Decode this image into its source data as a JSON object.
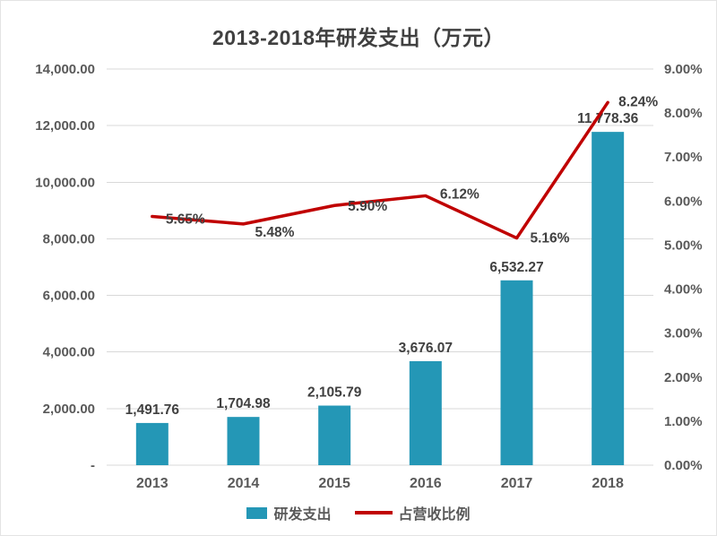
{
  "chart_data": {
    "type": "bar",
    "title": "2013-2018年研发支出（万元）",
    "categories": [
      "2013",
      "2014",
      "2015",
      "2016",
      "2017",
      "2018"
    ],
    "series": [
      {
        "name": "研发支出",
        "type": "bar",
        "axis": "left",
        "color": "#2497B6",
        "values": [
          1491.76,
          1704.98,
          2105.79,
          3676.07,
          6532.27,
          11778.36
        ],
        "labels": [
          "1,491.76",
          "1,704.98",
          "2,105.79",
          "3,676.07",
          "6,532.27",
          "11,778.36"
        ]
      },
      {
        "name": "占营收比例",
        "type": "line",
        "axis": "right",
        "color": "#C00000",
        "values": [
          5.65,
          5.48,
          5.9,
          6.12,
          5.16,
          8.24
        ],
        "labels": [
          "5.65%",
          "5.48%",
          "5.90%",
          "6.12%",
          "5.16%",
          "8.24%"
        ]
      }
    ],
    "left_axis": {
      "min": 0,
      "max": 14000,
      "step": 2000,
      "tick_labels": [
        "-",
        "2,000.00",
        "4,000.00",
        "6,000.00",
        "8,000.00",
        "10,000.00",
        "12,000.00",
        "14,000.00"
      ]
    },
    "right_axis": {
      "min": 0,
      "max": 9,
      "step": 1,
      "tick_labels": [
        "0.00%",
        "1.00%",
        "2.00%",
        "3.00%",
        "4.00%",
        "5.00%",
        "6.00%",
        "7.00%",
        "8.00%",
        "9.00%"
      ]
    },
    "grid": true,
    "grid_color": "#D9D9D9",
    "legend_position": "bottom"
  }
}
